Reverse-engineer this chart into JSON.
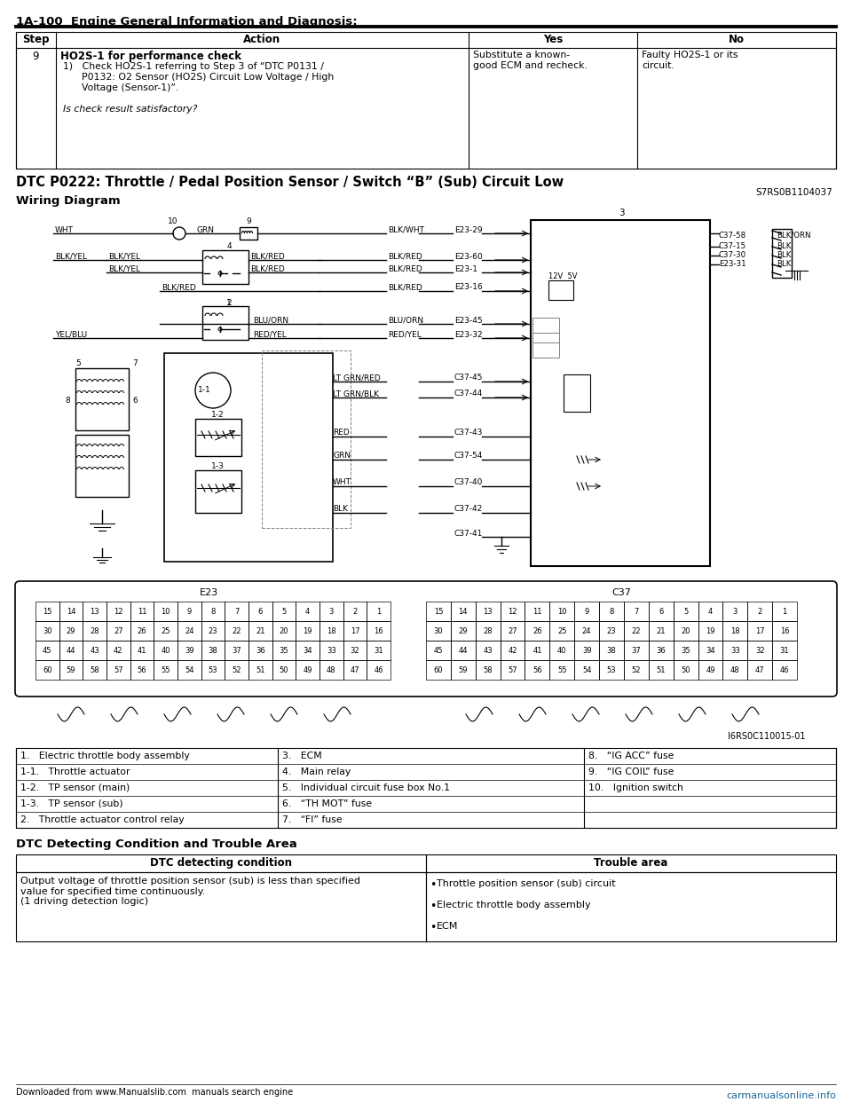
{
  "page_header": "1A-100  Engine General Information and Diagnosis:",
  "table1_headers": [
    "Step",
    "Action",
    "Yes",
    "No"
  ],
  "table1_row": {
    "step": "9",
    "action_bold": "HO2S-1 for performance check",
    "yes": "Substitute a known-\ngood ECM and recheck.",
    "no": "Faulty HO2S-1 or its\ncircuit."
  },
  "dtc_title": "DTC P0222: Throttle / Pedal Position Sensor / Switch “B” (Sub) Circuit Low",
  "dtc_code": "S7RS0B1104037",
  "wiring_title": "Wiring Diagram",
  "legend_items": [
    [
      "1.   Electric throttle body assembly",
      "3.   ECM",
      "8.   “IG ACC” fuse"
    ],
    [
      "1-1.   Throttle actuator",
      "4.   Main relay",
      "9.   “IG COIL” fuse"
    ],
    [
      "1-2.   TP sensor (main)",
      "5.   Individual circuit fuse box No.1",
      "10.   Ignition switch"
    ],
    [
      "1-3.   TP sensor (sub)",
      "6.   “TH MOT” fuse",
      ""
    ],
    [
      "2.   Throttle actuator control relay",
      "7.   “FI” fuse",
      ""
    ]
  ],
  "dtc_detect_title": "DTC Detecting Condition and Trouble Area",
  "dtc_detect_headers": [
    "DTC detecting condition",
    "Trouble area"
  ],
  "dtc_detect_condition": "Output voltage of throttle position sensor (sub) is less than specified\nvalue for specified time continuously.\n(1 driving detection logic)",
  "dtc_detect_trouble": [
    "Throttle position sensor (sub) circuit",
    "Electric throttle body assembly",
    "ECM"
  ],
  "footer_left": "Downloaded from www.Manualslib.com  manuals search engine",
  "footer_right": "carmanualsonline.info",
  "image_ref_code": "I6RS0C110015-01",
  "e23_nums": [
    [
      15,
      14,
      13,
      12,
      11,
      10,
      9,
      8,
      7,
      6,
      5,
      4,
      3,
      2,
      1
    ],
    [
      30,
      29,
      28,
      27,
      26,
      25,
      24,
      23,
      22,
      21,
      20,
      19,
      18,
      17,
      16
    ],
    [
      45,
      44,
      43,
      42,
      41,
      40,
      39,
      38,
      37,
      36,
      35,
      34,
      33,
      32,
      31
    ],
    [
      60,
      59,
      58,
      57,
      56,
      55,
      54,
      53,
      52,
      51,
      50,
      49,
      48,
      47,
      46
    ]
  ],
  "c37_nums": [
    [
      15,
      14,
      13,
      12,
      11,
      10,
      9,
      8,
      7,
      6,
      5,
      4,
      3,
      2,
      1
    ],
    [
      30,
      29,
      28,
      27,
      26,
      25,
      24,
      23,
      22,
      21,
      20,
      19,
      18,
      17,
      16
    ],
    [
      45,
      44,
      43,
      42,
      41,
      40,
      39,
      38,
      37,
      36,
      35,
      34,
      33,
      32,
      31
    ],
    [
      60,
      59,
      58,
      57,
      56,
      55,
      54,
      53,
      52,
      51,
      50,
      49,
      48,
      47,
      46
    ]
  ],
  "bg_color": "#ffffff"
}
